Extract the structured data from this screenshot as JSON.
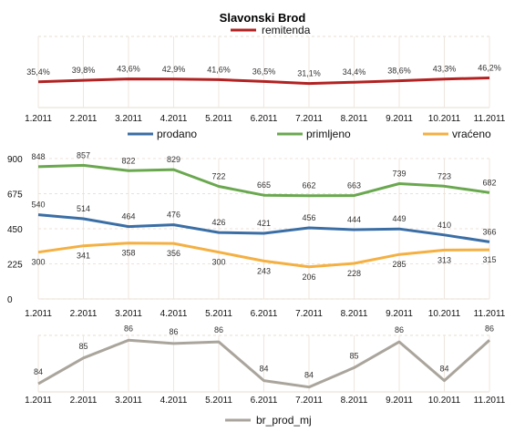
{
  "title": "Slavonski Brod",
  "chart_data": [
    {
      "type": "line",
      "name": "remitenda-panel",
      "categories": [
        "1.2011",
        "2.2011",
        "3.2011",
        "4.2011",
        "5.2011",
        "6.2011",
        "7.2011",
        "8.2011",
        "9.2011",
        "10.2011",
        "11.2011"
      ],
      "series": [
        {
          "name": "remitenda",
          "color": "#b22222",
          "values": [
            35.4,
            39.8,
            43.6,
            42.9,
            41.6,
            36.5,
            31.1,
            34.4,
            38.6,
            43.3,
            46.2
          ],
          "labels": [
            "35,4%",
            "39,8%",
            "43,6%",
            "42,9%",
            "41,6%",
            "36,5%",
            "31,1%",
            "34,4%",
            "38,6%",
            "43,3%",
            "46,2%"
          ]
        }
      ],
      "ylim": [
        -35,
        160
      ],
      "grid": true,
      "legend": "top"
    },
    {
      "type": "line",
      "name": "prodaja-panel",
      "categories": [
        "1.2011",
        "2.2011",
        "3.2011",
        "4.2011",
        "5.2011",
        "6.2011",
        "7.2011",
        "8.2011",
        "9.2011",
        "10.2011",
        "11.2011"
      ],
      "yticks": [
        "0",
        "225",
        "450",
        "675",
        "900"
      ],
      "ylim": [
        0,
        900
      ],
      "series": [
        {
          "name": "prodano",
          "color": "#3a6ea5",
          "values": [
            540,
            514,
            464,
            476,
            426,
            421,
            456,
            444,
            449,
            410,
            366
          ]
        },
        {
          "name": "primljeno",
          "color": "#6aa84f",
          "values": [
            848,
            857,
            822,
            829,
            722,
            665,
            662,
            663,
            739,
            723,
            682
          ]
        },
        {
          "name": "vraćeno",
          "color": "#f4b042",
          "values": [
            300,
            341,
            358,
            356,
            300,
            243,
            206,
            228,
            285,
            313,
            315
          ]
        }
      ],
      "grid": true,
      "legend": "top"
    },
    {
      "type": "line",
      "name": "br-prod-panel",
      "categories": [
        "1.2011",
        "2.2011",
        "3.2011",
        "4.2011",
        "5.2011",
        "6.2011",
        "7.2011",
        "8.2011",
        "9.2011",
        "10.2011",
        "11.2011"
      ],
      "series": [
        {
          "name": "br_prod_mj",
          "color": "#aaa59c",
          "values": [
            84,
            85,
            86,
            86,
            86,
            84,
            84,
            85,
            86,
            84,
            86
          ],
          "plot": [
            83.7,
            85.3,
            86.4,
            86.2,
            86.3,
            83.9,
            83.5,
            84.7,
            86.3,
            83.9,
            86.4
          ]
        }
      ],
      "ylim": [
        83.2,
        86.7
      ],
      "grid": true,
      "legend": "bottom"
    }
  ]
}
